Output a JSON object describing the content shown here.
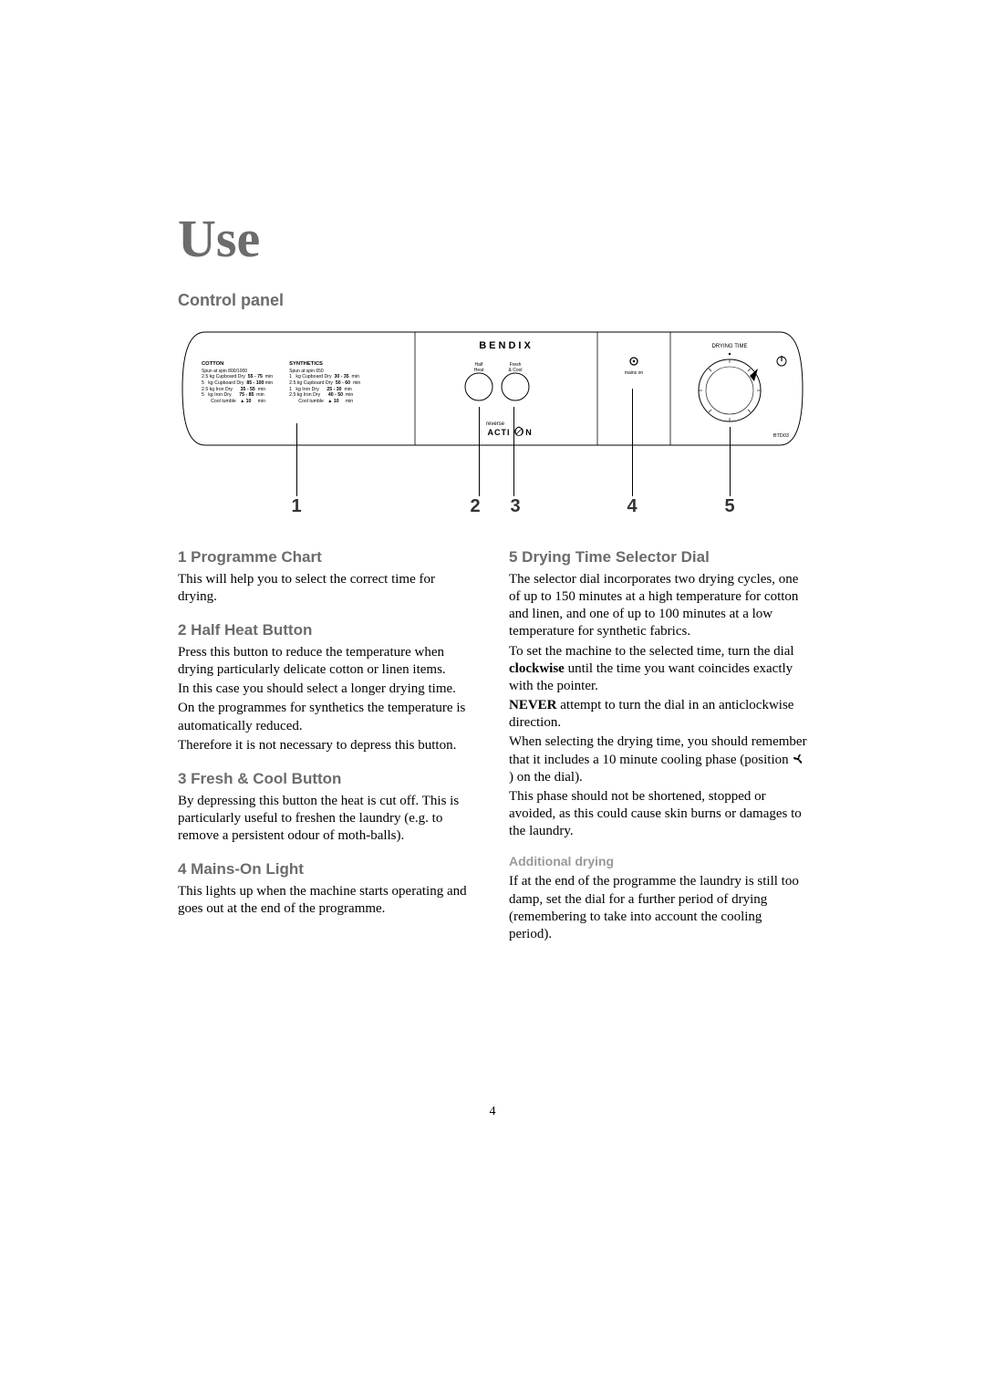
{
  "page": {
    "title": "Use",
    "section": "Control panel",
    "page_number": "4"
  },
  "colors": {
    "title": "#6d6b6b",
    "heading": "#6d6b6b",
    "body": "#000000",
    "line": "#000000"
  },
  "panel": {
    "brand": "BENDIX",
    "reverse_label": "reverse",
    "action_label": "ACTI   N",
    "half_heat_label": "Half\nHeat",
    "fresh_cool_label": "Fresh\n& Cool",
    "mains_on_label": "mains on",
    "drying_time_label": "DRYING TIME",
    "model": "BTD03",
    "power_glyph": "⏻",
    "chart": {
      "cotton_title": "COTTON",
      "cotton_sub": "Spun at spin 800/1000",
      "cotton_rows": [
        [
          "2.5 kg",
          "Cupboard Dry",
          "55 - 75",
          "min"
        ],
        [
          "5   kg",
          "Cupboard Dry",
          "85 - 100",
          "min"
        ],
        [
          "2.5 kg",
          "Iron Dry",
          "35 - 55",
          "min"
        ],
        [
          "5   kg",
          "Iron Dry",
          "75 - 85",
          "min"
        ],
        [
          "",
          "Cool tumble",
          "▲ 10",
          "min"
        ]
      ],
      "synth_title": "SYNTHETICS",
      "synth_sub": "Spun at spin 650",
      "synth_rows": [
        [
          "1   kg",
          "Cupboard Dry",
          "30 - 35",
          "min"
        ],
        [
          "2.5 kg",
          "Cupboard Dry",
          "50 - 60",
          "min"
        ],
        [
          "1   kg",
          "Iron Dry",
          "25 - 30",
          "min"
        ],
        [
          "2.5 kg",
          "Iron Dry",
          "40 - 50",
          "min"
        ],
        [
          "",
          "Cool tumble",
          "▲ 10",
          "min"
        ]
      ]
    },
    "callouts": [
      "1",
      "2",
      "3",
      "4",
      "5"
    ]
  },
  "left": {
    "h1": "1 Programme Chart",
    "p1": "This will help you to select the correct time for drying.",
    "h2": "2 Half Heat Button",
    "p2a": "Press this button to reduce the temperature when drying particularly delicate cotton or linen items.",
    "p2b": "In this case you should select a longer drying time.",
    "p2c": "On the programmes for synthetics the temperature is automatically reduced.",
    "p2d": "Therefore it is not necessary to depress this button.",
    "h3": "3 Fresh & Cool Button",
    "p3": "By depressing this button the heat is cut off. This is particularly useful to freshen the laundry (e.g. to remove a persistent odour of moth-balls).",
    "h4": "4 Mains-On Light",
    "p4": "This lights up when the machine starts operating and goes out at the end of the programme."
  },
  "right": {
    "h5": "5 Drying Time Selector Dial",
    "p5a": "The selector dial incorporates two drying cycles, one of up to 150 minutes at a high temperature for cotton and linen, and one of up to 100 minutes at a low temperature for synthetic fabrics.",
    "p5b_pre": "To set the machine to the selected time, turn the dial ",
    "p5b_bold": "clockwise",
    "p5b_post": " until the time you want coincides exactly with the pointer.",
    "p5c_bold": "NEVER",
    "p5c_post": " attempt to turn the dial in an anticlockwise direction.",
    "p5d_pre": "When selecting the drying time, you should remember that it includes a 10 minute cooling phase (position ",
    "p5d_post": " ) on the dial).",
    "p5e": "This phase should not be shortened, stopped or avoided, as this could cause skin burns or damages to the laundry.",
    "sub": "Additional drying",
    "p5f": "If at the end of the programme the laundry is still too damp, set the dial for a further period of drying (remembering to take into account the cooling period)."
  }
}
